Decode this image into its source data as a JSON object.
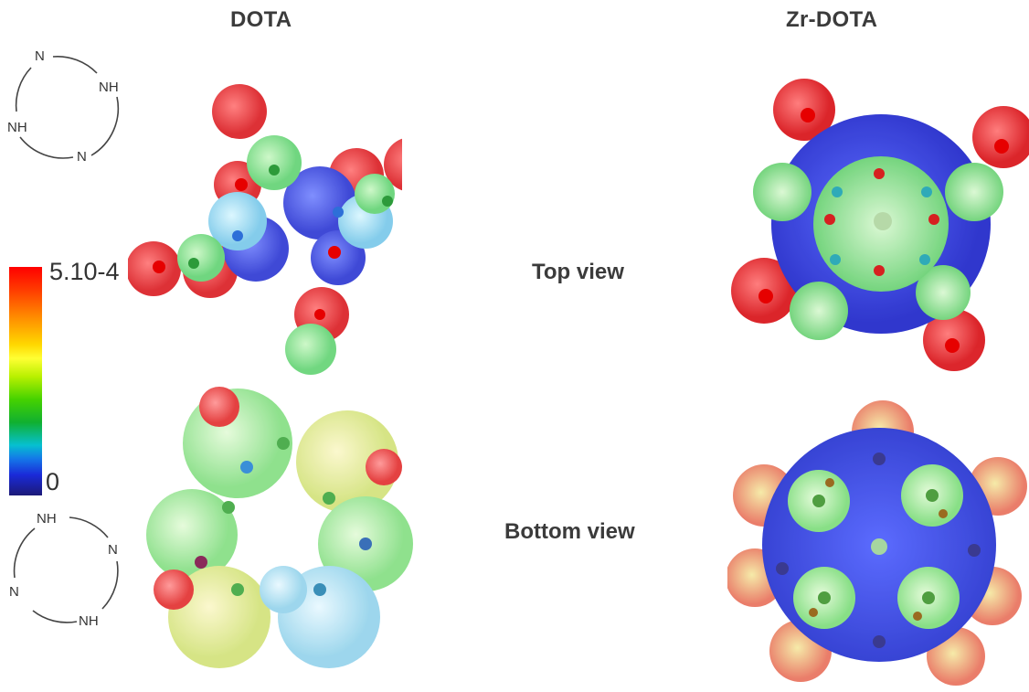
{
  "titles": {
    "left": "DOTA",
    "right": "Zr-DOTA"
  },
  "view_labels": {
    "top": "Top view",
    "bottom": "Bottom view"
  },
  "colorbar": {
    "max_label": "5.10-4",
    "min_label": "0",
    "colors": [
      "#ff0000",
      "#ff8c00",
      "#ffff33",
      "#45d200",
      "#06c0d0",
      "#1a2ad8",
      "#1c1a78"
    ]
  },
  "ring_top": {
    "atoms": [
      "N",
      "NH",
      "NH",
      "N"
    ]
  },
  "ring_bottom": {
    "atoms": [
      "NH",
      "N",
      "N",
      "NH"
    ]
  },
  "colors": {
    "oxygen": "#e8161a",
    "nitrogen": "#2f6fd8",
    "carbon": "#3aa840",
    "surface_blue": "#2a35e0"
  }
}
